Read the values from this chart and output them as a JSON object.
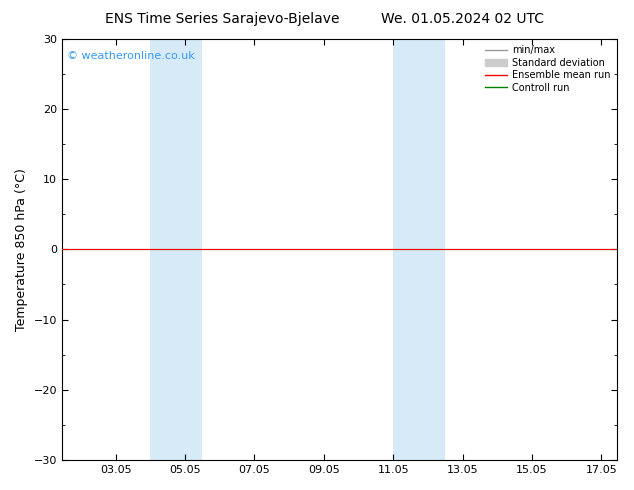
{
  "title_left": "ENS Time Series Sarajevo-Bjelave",
  "title_right": "We. 01.05.2024 02 UTC",
  "ylabel": "Temperature 850 hPa (°C)",
  "copyright_text": "© weatheronline.co.uk",
  "ylim": [
    -30,
    30
  ],
  "yticks": [
    -30,
    -20,
    -10,
    0,
    10,
    20,
    30
  ],
  "xlim_start": 1.5,
  "xlim_end": 17.5,
  "xticks": [
    3.05,
    5.05,
    7.05,
    9.05,
    11.05,
    13.05,
    15.05,
    17.05
  ],
  "xtick_labels": [
    "03.05",
    "05.05",
    "07.05",
    "09.05",
    "11.05",
    "13.05",
    "15.05",
    "17.05"
  ],
  "zero_line_y": 0,
  "shaded_regions": [
    {
      "x_start": 4.05,
      "x_end": 5.55
    },
    {
      "x_start": 11.05,
      "x_end": 12.55
    }
  ],
  "shaded_color": "#d6eaf8",
  "bg_color": "#ffffff",
  "plot_bg_color": "#ffffff",
  "zero_line_color": "#000000",
  "green_line_color": "#008000",
  "red_line_color": "#ff0000",
  "legend_minmax_color": "#999999",
  "legend_stddev_color": "#cccccc",
  "legend_ensemble_color": "#ff0000",
  "legend_control_color": "#008000",
  "title_fontsize": 10,
  "axis_fontsize": 8,
  "ylabel_fontsize": 9,
  "copyright_fontsize": 8,
  "copyright_color": "#3399ff"
}
